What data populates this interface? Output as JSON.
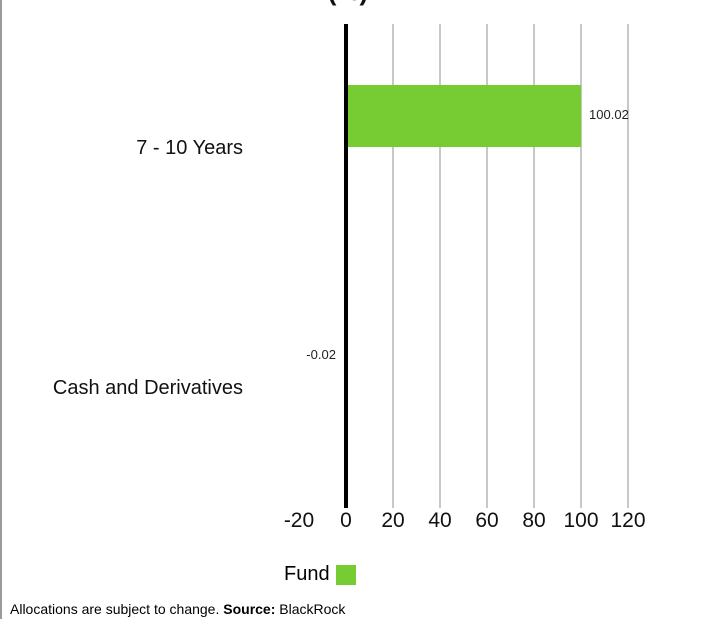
{
  "chart_data": {
    "type": "bar",
    "orientation": "horizontal",
    "title": "(%)",
    "categories": [
      "7 - 10 Years",
      "Cash and Derivatives"
    ],
    "series": [
      {
        "name": "Fund",
        "values": [
          100.02,
          -0.02
        ],
        "color": "#77cc33"
      }
    ],
    "data_labels": [
      "100.02",
      "-0.02"
    ],
    "xlim": [
      -20,
      120
    ],
    "xticks": [
      -20,
      0,
      20,
      40,
      60,
      80,
      100,
      120
    ],
    "xtick_labels": [
      "-20",
      "0",
      "20",
      "40",
      "60",
      "80",
      "100",
      "120"
    ],
    "grid": true,
    "legend": "bottom"
  },
  "legend": {
    "label": "Fund",
    "color": "#77cc33"
  },
  "footer": {
    "text": "Allocations are subject to change.",
    "source_label": "Source:",
    "source": "BlackRock"
  }
}
